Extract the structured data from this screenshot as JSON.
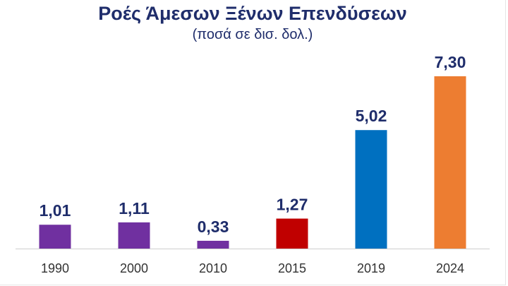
{
  "chart_data": {
    "type": "bar",
    "title": "Ροές Άμεσων Ξένων Επενδύσεων",
    "subtitle": "(ποσά σε δισ. δολ.)",
    "categories": [
      "1990",
      "2000",
      "2010",
      "2015",
      "2019",
      "2024"
    ],
    "values": [
      1.01,
      1.11,
      0.33,
      1.27,
      5.02,
      7.3
    ],
    "data_labels": [
      "1,01",
      "1,11",
      "0,33",
      "1,27",
      "5,02",
      "7,30"
    ],
    "colors": [
      "#7030a0",
      "#7030a0",
      "#7030a0",
      "#c00000",
      "#0070c0",
      "#ed7d31"
    ],
    "xlabel": "",
    "ylabel": "",
    "ylim": [
      0,
      7.3
    ],
    "grid": false,
    "legend": "none"
  }
}
